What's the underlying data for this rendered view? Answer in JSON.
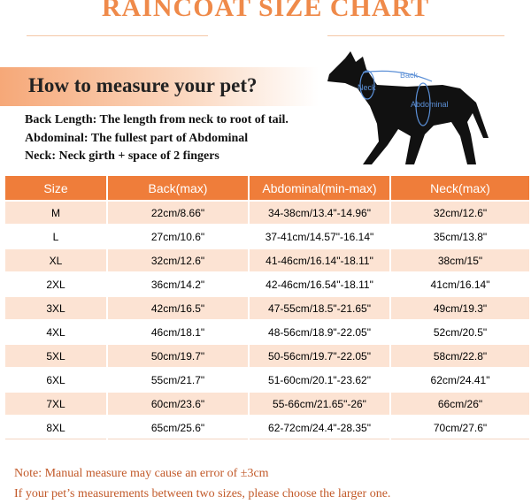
{
  "title": "RAINCOAT SIZE CHART",
  "measure": {
    "heading": "How to measure your pet?",
    "lines": [
      "Back Length: The length from neck to root of tail.",
      "Abdominal: The fullest part of Abdominal",
      "Neck: Neck girth + space of 2 fingers"
    ],
    "diagram_labels": {
      "back": "Back",
      "neck": "Neck",
      "abdominal": "Abdominal"
    }
  },
  "table": {
    "header": [
      "Size",
      "Back(max)",
      "Abdominal(min-max)",
      "Neck(max)"
    ],
    "rows": [
      [
        "M",
        "22cm/8.66\"",
        "34-38cm/13.4\"-14.96\"",
        "32cm/12.6\""
      ],
      [
        "L",
        "27cm/10.6\"",
        "37-41cm/14.57\"-16.14\"",
        "35cm/13.8\""
      ],
      [
        "XL",
        "32cm/12.6\"",
        "41-46cm/16.14\"-18.11\"",
        "38cm/15\""
      ],
      [
        "2XL",
        "36cm/14.2\"",
        "42-46cm/16.54\"-18.11\"",
        "41cm/16.14\""
      ],
      [
        "3XL",
        "42cm/16.5\"",
        "47-55cm/18.5\"-21.65\"",
        "49cm/19.3\""
      ],
      [
        "4XL",
        "46cm/18.1\"",
        "48-56cm/18.9\"-22.05\"",
        "52cm/20.5\""
      ],
      [
        "5XL",
        "50cm/19.7\"",
        "50-56cm/19.7\"-22.05\"",
        "58cm/22.8\""
      ],
      [
        "6XL",
        "55cm/21.7\"",
        "51-60cm/20.1\"-23.62\"",
        "62cm/24.41\""
      ],
      [
        "7XL",
        "60cm/23.6\"",
        "55-66cm/21.65\"-26\"",
        "66cm/26\""
      ],
      [
        "8XL",
        "65cm/25.6\"",
        "62-72cm/24.4\"-28.35\"",
        "70cm/27.6\""
      ]
    ]
  },
  "notes": [
    "Note: Manual measure may cause an error of ±3cm",
    "If your pet’s measurements between two sizes, please choose the larger one."
  ]
}
